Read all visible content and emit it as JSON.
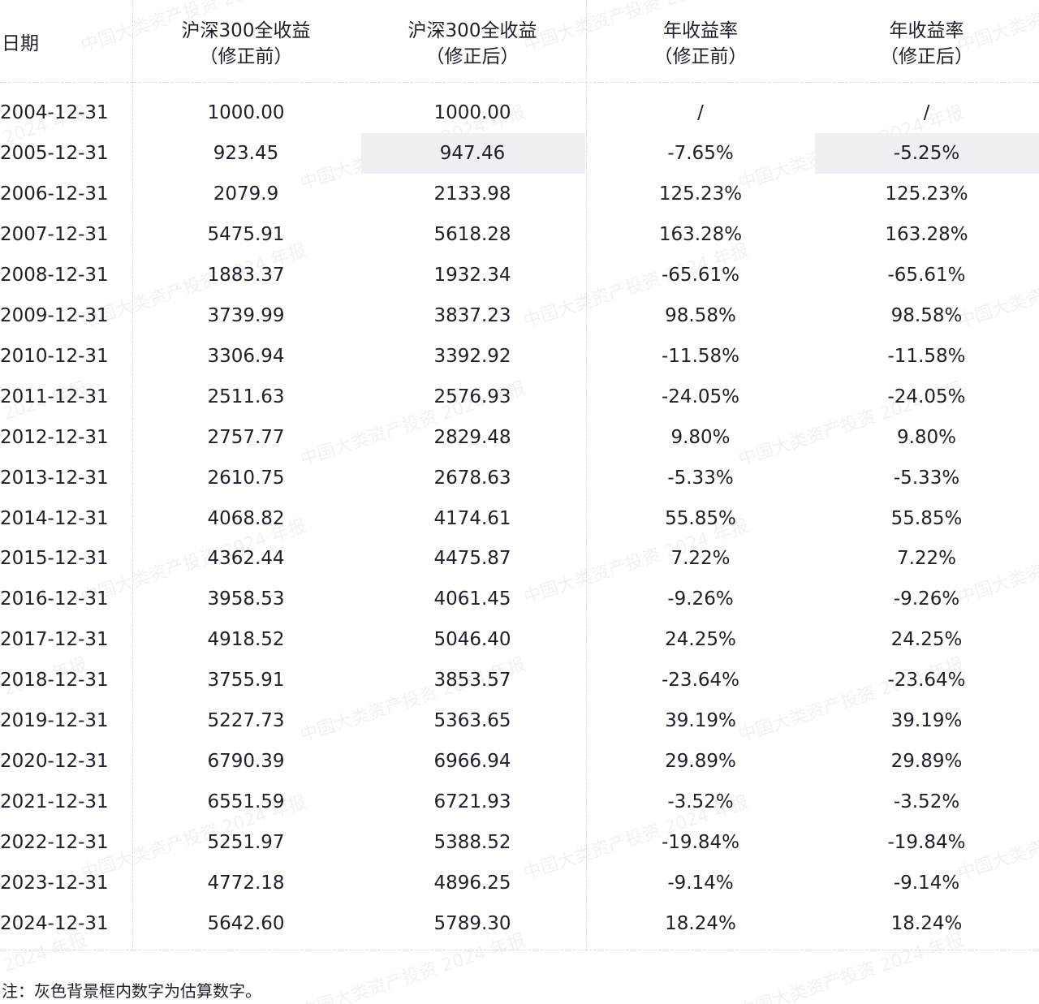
{
  "header": {
    "date": "日期",
    "col1_line1": "沪深300全收益",
    "col1_line2": "（修正前）",
    "col2_line1": "沪深300全收益",
    "col2_line2": "（修正后）",
    "col3_line1": "年收益率",
    "col3_line2": "（修正前）",
    "col4_line1": "年收益率",
    "col4_line2": "（修正后）"
  },
  "rows": [
    {
      "date": "2004-12-31",
      "pre": "1000.00",
      "post": "1000.00",
      "ret_pre": "/",
      "ret_post": "/"
    },
    {
      "date": "2005-12-31",
      "pre": "923.45",
      "post": "947.46",
      "ret_pre": "-7.65%",
      "ret_post": "-5.25%"
    },
    {
      "date": "2006-12-31",
      "pre": "2079.9",
      "post": "2133.98",
      "ret_pre": "125.23%",
      "ret_post": "125.23%"
    },
    {
      "date": "2007-12-31",
      "pre": "5475.91",
      "post": "5618.28",
      "ret_pre": "163.28%",
      "ret_post": "163.28%"
    },
    {
      "date": "2008-12-31",
      "pre": "1883.37",
      "post": "1932.34",
      "ret_pre": "-65.61%",
      "ret_post": "-65.61%"
    },
    {
      "date": "2009-12-31",
      "pre": "3739.99",
      "post": "3837.23",
      "ret_pre": "98.58%",
      "ret_post": "98.58%"
    },
    {
      "date": "2010-12-31",
      "pre": "3306.94",
      "post": "3392.92",
      "ret_pre": "-11.58%",
      "ret_post": "-11.58%"
    },
    {
      "date": "2011-12-31",
      "pre": "2511.63",
      "post": "2576.93",
      "ret_pre": "-24.05%",
      "ret_post": "-24.05%"
    },
    {
      "date": "2012-12-31",
      "pre": "2757.77",
      "post": "2829.48",
      "ret_pre": "9.80%",
      "ret_post": "9.80%"
    },
    {
      "date": "2013-12-31",
      "pre": "2610.75",
      "post": "2678.63",
      "ret_pre": "-5.33%",
      "ret_post": "-5.33%"
    },
    {
      "date": "2014-12-31",
      "pre": "4068.82",
      "post": "4174.61",
      "ret_pre": "55.85%",
      "ret_post": "55.85%"
    },
    {
      "date": "2015-12-31",
      "pre": "4362.44",
      "post": "4475.87",
      "ret_pre": "7.22%",
      "ret_post": "7.22%"
    },
    {
      "date": "2016-12-31",
      "pre": "3958.53",
      "post": "4061.45",
      "ret_pre": "-9.26%",
      "ret_post": "-9.26%"
    },
    {
      "date": "2017-12-31",
      "pre": "4918.52",
      "post": "5046.40",
      "ret_pre": "24.25%",
      "ret_post": "24.25%"
    },
    {
      "date": "2018-12-31",
      "pre": "3755.91",
      "post": "3853.57",
      "ret_pre": "-23.64%",
      "ret_post": "-23.64%"
    },
    {
      "date": "2019-12-31",
      "pre": "5227.73",
      "post": "5363.65",
      "ret_pre": "39.19%",
      "ret_post": "39.19%"
    },
    {
      "date": "2020-12-31",
      "pre": "6790.39",
      "post": "6966.94",
      "ret_pre": "29.89%",
      "ret_post": "29.89%"
    },
    {
      "date": "2021-12-31",
      "pre": "6551.59",
      "post": "6721.93",
      "ret_pre": "-3.52%",
      "ret_post": "-3.52%"
    },
    {
      "date": "2022-12-31",
      "pre": "5251.97",
      "post": "5388.52",
      "ret_pre": "-19.84%",
      "ret_post": "-19.84%"
    },
    {
      "date": "2023-12-31",
      "pre": "4772.18",
      "post": "4896.25",
      "ret_pre": "-9.14%",
      "ret_post": "-9.14%"
    },
    {
      "date": "2024-12-31",
      "pre": "5642.60",
      "post": "5789.30",
      "ret_pre": "18.24%",
      "ret_post": "18.24%"
    }
  ],
  "estimated_cells": [
    {
      "row": 1,
      "column": "post"
    },
    {
      "row": 1,
      "column": "ret_post"
    }
  ],
  "estimate_color": "#eef0f3",
  "watermark": "中国大类资产投资 2024 年报",
  "footnote": "注：灰色背景框内数字为估算数字。"
}
